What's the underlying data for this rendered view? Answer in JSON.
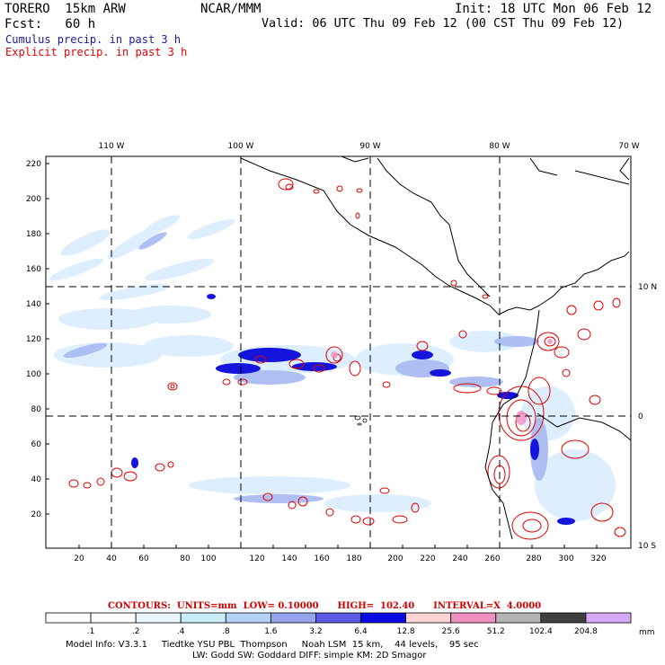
{
  "header": {
    "model_title": "TORERO  15km ARW",
    "org": "NCAR/MMM",
    "init": "Init: 18 UTC Mon 06 Feb 12",
    "fcst": "Fcst:   60 h",
    "valid": "Valid: 06 UTC Thu 09 Feb 12 (00 CST Thu 09 Feb 12)",
    "field1": "Cumulus precip. in past 3 h",
    "field2": "Explicit precip. in past 3 h",
    "field1_color": "#1a1aa0",
    "field2_color": "#e00000"
  },
  "map": {
    "lon_labels": [
      "110 W",
      "100 W",
      "90 W",
      "80 W",
      "70 W"
    ],
    "lat_labels": [
      "10 N",
      "0",
      "10 S"
    ],
    "y_ticks": [
      "220",
      "200",
      "180",
      "160",
      "140",
      "120",
      "100",
      "80",
      "60",
      "40",
      "20"
    ],
    "x_ticks": [
      "20",
      "40",
      "60",
      "80",
      "100",
      "120",
      "140",
      "160",
      "180",
      "200",
      "220",
      "240",
      "260",
      "280",
      "300",
      "320"
    ]
  },
  "contours": {
    "line": "CONTOURS:  UNITS=mm  LOW= 0.10000      HIGH=  102.40      INTERVAL=X  4.0000"
  },
  "colorbar": {
    "labels": [
      ".1",
      ".2",
      ".4",
      ".8",
      "1.6",
      "3.2",
      "6.4",
      "12.8",
      "25.6",
      "51.2",
      "102.4",
      "204.8"
    ],
    "unit": "mm",
    "colors": [
      "#ffffff",
      "#ffffff",
      "#e8f6ff",
      "#c8ecf8",
      "#b4d2f6",
      "#96a4ee",
      "#5a5ae4",
      "#0a0ae6",
      "#ffd4d4",
      "#f090c0",
      "#b4b4b4",
      "#404040",
      "#d8a8f8"
    ]
  },
  "footer": {
    "line1": "Model Info: V3.3.1     Tiedtke YSU PBL  Thompson     Noah LSM  15 km,    44 levels,    95 sec",
    "line2": "LW: Godd SW: Goddard DIFF: simple KM: 2D Smagor"
  }
}
